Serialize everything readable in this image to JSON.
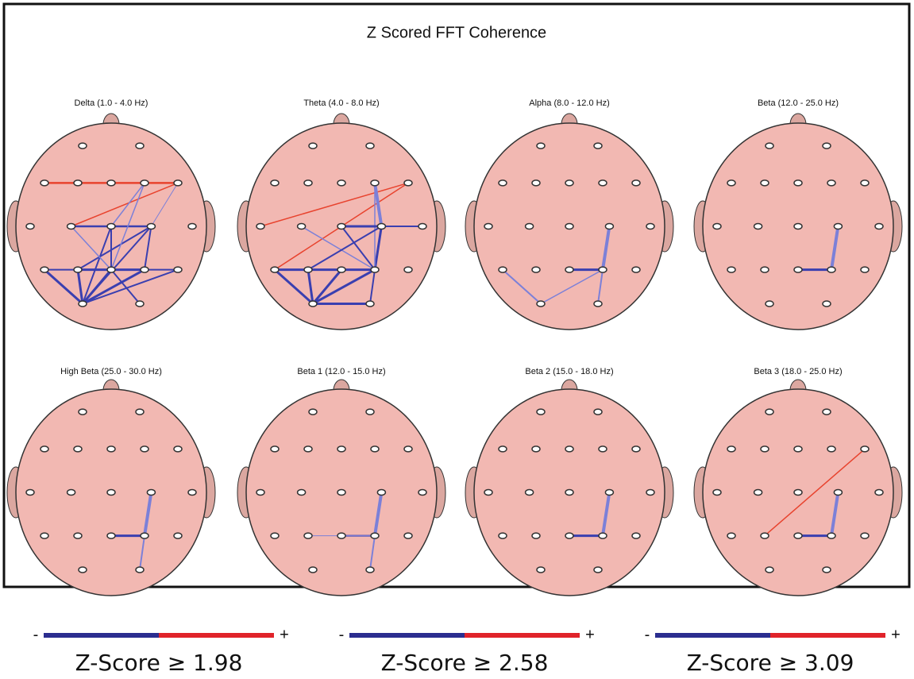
{
  "title": "Z Scored FFT Coherence",
  "panels": [
    {
      "title": "Delta (1.0 - 4.0 Hz)"
    },
    {
      "title": "Theta (4.0 - 8.0 Hz)"
    },
    {
      "title": "Alpha (8.0 - 12.0 Hz)"
    },
    {
      "title": "Beta (12.0 - 25.0 Hz)"
    },
    {
      "title": "High Beta (25.0 - 30.0 Hz)"
    },
    {
      "title": "Beta 1 (12.0 - 15.0 Hz)"
    },
    {
      "title": "Beta 2 (15.0 - 18.0 Hz)"
    },
    {
      "title": "Beta 3 (18.0 - 25.0 Hz)"
    }
  ],
  "legend": [
    {
      "minus": "-",
      "plus": "+",
      "label": "Z-Score ≥ 1.98"
    },
    {
      "minus": "-",
      "plus": "+",
      "label": "Z-Score ≥ 2.58"
    },
    {
      "minus": "-",
      "plus": "+",
      "label": "Z-Score ≥ 3.09"
    }
  ]
}
